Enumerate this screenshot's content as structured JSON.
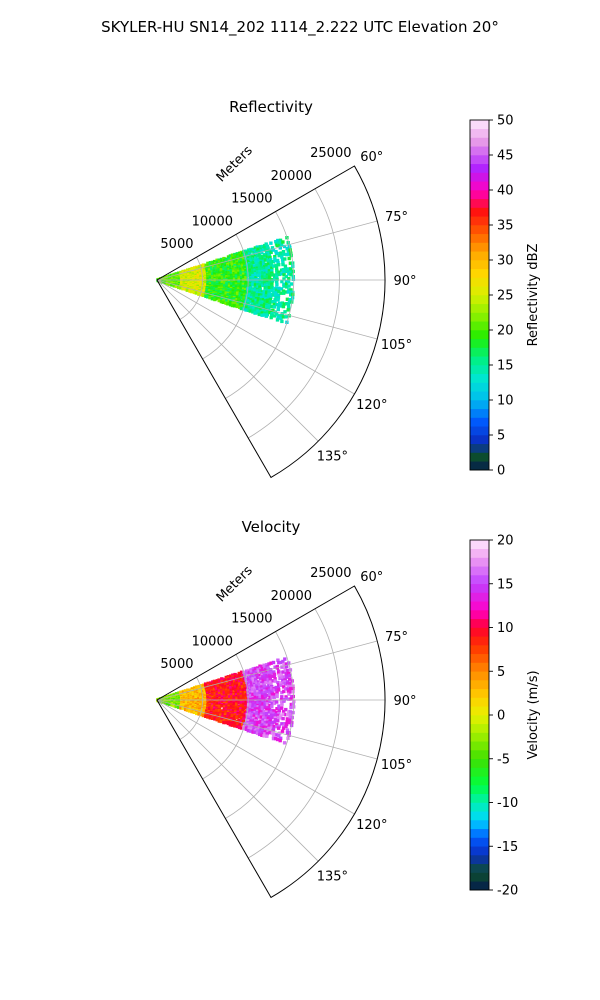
{
  "figure_title": "SKYLER-HU  SN14_202  1114_2.222 UTC Elevation 20°",
  "chart_data": [
    {
      "type": "heatmap",
      "title": "Reflectivity",
      "rlabel": "Meters",
      "r_ticks": [
        5000,
        10000,
        15000,
        20000,
        25000
      ],
      "r_max": 25000,
      "theta_range_deg": [
        60,
        150
      ],
      "theta_ticks": [
        "60°",
        "75°",
        "90°",
        "105°",
        "120°",
        "135°"
      ],
      "grid": true,
      "cbar_label": "Reflectivity dBZ",
      "cbar_range": [
        0,
        50
      ],
      "cbar_ticks": [
        0,
        5,
        10,
        15,
        20,
        25,
        30,
        35,
        40,
        45,
        50
      ],
      "colorscale": [
        {
          "value": 0,
          "color": "#041a4f"
        },
        {
          "value": 2,
          "color": "#0d4f2c"
        },
        {
          "value": 4,
          "color": "#0a2dbf"
        },
        {
          "value": 7,
          "color": "#005bff"
        },
        {
          "value": 10,
          "color": "#00bbee"
        },
        {
          "value": 13,
          "color": "#00e6d2"
        },
        {
          "value": 16,
          "color": "#00f080"
        },
        {
          "value": 19,
          "color": "#22ee00"
        },
        {
          "value": 22,
          "color": "#88f000"
        },
        {
          "value": 25,
          "color": "#d8f000"
        },
        {
          "value": 28,
          "color": "#ffd800"
        },
        {
          "value": 31,
          "color": "#ffa800"
        },
        {
          "value": 34,
          "color": "#ff5a00"
        },
        {
          "value": 37,
          "color": "#ff1010"
        },
        {
          "value": 40,
          "color": "#ff00c0"
        },
        {
          "value": 43,
          "color": "#b020ff"
        },
        {
          "value": 47,
          "color": "#e89ce8"
        },
        {
          "value": 50,
          "color": "#ffeaff"
        }
      ],
      "field": {
        "description": "echo sector",
        "theta_extent_deg": [
          72,
          109
        ],
        "r_extent_m": [
          0,
          15000
        ],
        "bands": [
          {
            "r": [
              0,
              2500
            ],
            "value": 21
          },
          {
            "r": [
              2500,
              5500
            ],
            "value": 25
          },
          {
            "r": [
              5500,
              10000
            ],
            "value": 19
          },
          {
            "r": [
              10000,
              15000
            ],
            "value": 15
          }
        ]
      }
    },
    {
      "type": "heatmap",
      "title": "Velocity",
      "rlabel": "Meters",
      "r_ticks": [
        5000,
        10000,
        15000,
        20000,
        25000
      ],
      "r_max": 25000,
      "theta_range_deg": [
        60,
        150
      ],
      "theta_ticks": [
        "60°",
        "75°",
        "90°",
        "105°",
        "120°",
        "135°"
      ],
      "grid": true,
      "cbar_label": "Velocity (m/s)",
      "cbar_range": [
        -20,
        20
      ],
      "cbar_ticks": [
        -20,
        -15,
        -10,
        -5,
        0,
        5,
        10,
        15,
        20
      ],
      "colorscale": [
        {
          "value": -20,
          "color": "#041a4f"
        },
        {
          "value": -18,
          "color": "#0d4f2c"
        },
        {
          "value": -16,
          "color": "#0a2dbf"
        },
        {
          "value": -14,
          "color": "#005bff"
        },
        {
          "value": -12,
          "color": "#00d6ff"
        },
        {
          "value": -10,
          "color": "#00f0b0"
        },
        {
          "value": -8,
          "color": "#00ff40"
        },
        {
          "value": -5,
          "color": "#40e000"
        },
        {
          "value": -2,
          "color": "#a8f000"
        },
        {
          "value": 0,
          "color": "#e8f000"
        },
        {
          "value": 2,
          "color": "#ffd000"
        },
        {
          "value": 5,
          "color": "#ff8a00"
        },
        {
          "value": 8,
          "color": "#ff3000"
        },
        {
          "value": 10,
          "color": "#ff0030"
        },
        {
          "value": 12,
          "color": "#ff00c8"
        },
        {
          "value": 15,
          "color": "#c040ff"
        },
        {
          "value": 18,
          "color": "#f0a0f0"
        },
        {
          "value": 20,
          "color": "#ffeaff"
        }
      ],
      "field": {
        "description": "echo sector",
        "theta_extent_deg": [
          72,
          109
        ],
        "r_extent_m": [
          0,
          15000
        ],
        "bands": [
          {
            "r": [
              0,
              2500
            ],
            "value": -3
          },
          {
            "r": [
              2500,
              5500
            ],
            "value": 3
          },
          {
            "r": [
              5500,
              10000
            ],
            "value": 9
          },
          {
            "r": [
              10000,
              15000
            ],
            "value": 15
          }
        ]
      }
    }
  ]
}
